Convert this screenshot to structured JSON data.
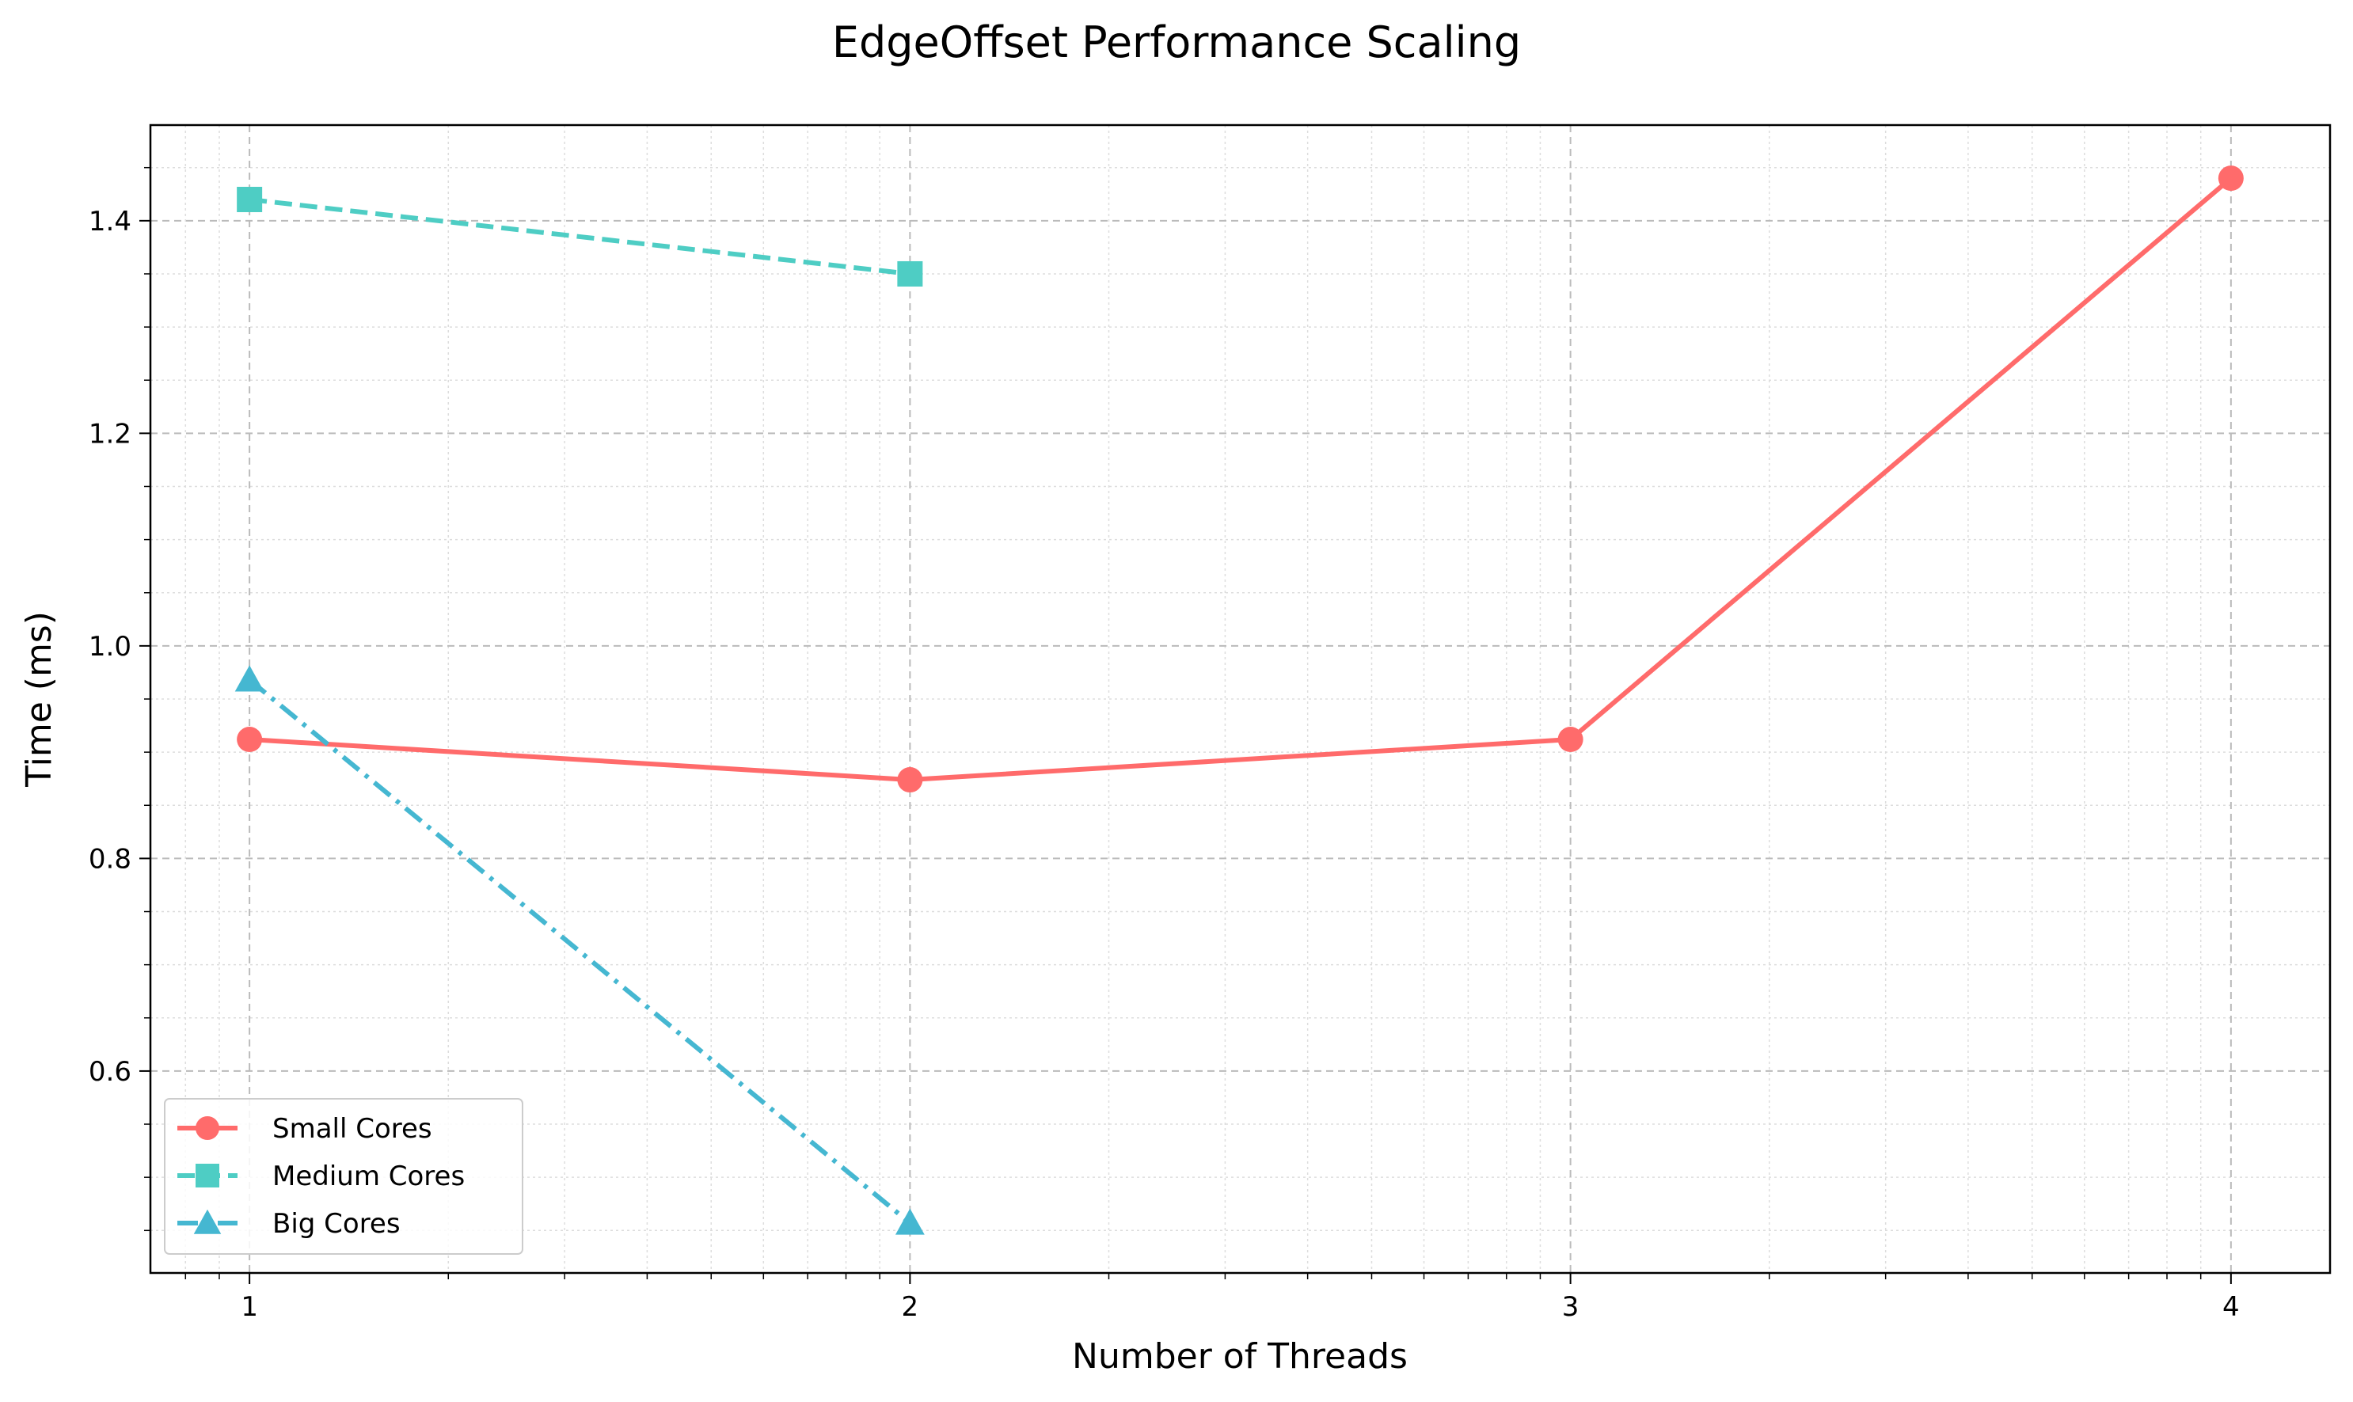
{
  "chart_data": {
    "type": "line",
    "title": "EdgeOffset Performance Scaling",
    "xlabel": "Number of Threads",
    "ylabel": "Time (ms)",
    "x": [
      1,
      2,
      3,
      4
    ],
    "xlim": [
      0.85,
      4.15
    ],
    "ylim": [
      0.41,
      1.49
    ],
    "xticks": [
      1,
      2,
      3,
      4
    ],
    "xtick_labels": [
      "1",
      "2",
      "3",
      "4"
    ],
    "yticks": [
      0.6,
      0.8,
      1.0,
      1.2,
      1.4
    ],
    "ytick_labels": [
      "0.6",
      "0.8",
      "1.0",
      "1.2",
      "1.4"
    ],
    "grid": true,
    "legend_position": "lower-left",
    "series": [
      {
        "name": "Small Cores",
        "x": [
          1,
          2,
          3,
          4
        ],
        "values": [
          0.912,
          0.874,
          0.912,
          1.44
        ],
        "color": "#ff6b6b",
        "marker": "circle",
        "line_style": "solid"
      },
      {
        "name": "Medium Cores",
        "x": [
          1,
          2
        ],
        "values": [
          1.42,
          1.35
        ],
        "color": "#4ecdc4",
        "marker": "square",
        "line_style": "dashed"
      },
      {
        "name": "Big Cores",
        "x": [
          1,
          2
        ],
        "values": [
          0.968,
          0.457
        ],
        "color": "#45b7d1",
        "marker": "triangle",
        "line_style": "dashdot"
      }
    ]
  }
}
